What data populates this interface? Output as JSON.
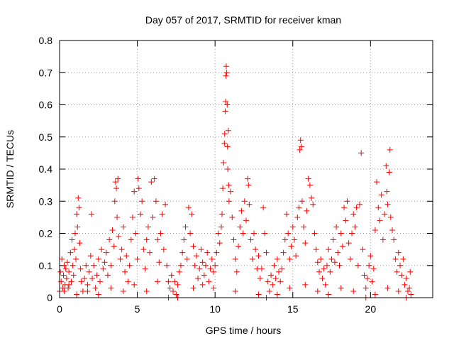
{
  "chart_data": {
    "type": "scatter",
    "title": "Day 057 of 2017, SRMTID for receiver kman",
    "xlabel": "GPS time / hours",
    "ylabel": "SRMTID / TECUs",
    "xlim": [
      0,
      24
    ],
    "ylim": [
      0,
      0.8
    ],
    "x_ticks": [
      0,
      5,
      10,
      15,
      20
    ],
    "y_ticks": [
      0,
      0.1,
      0.2,
      0.3,
      0.4,
      0.5,
      0.6,
      0.7,
      0.8
    ],
    "x_tick_labels": [
      "0",
      "5",
      "10",
      "15",
      "20"
    ],
    "y_tick_labels": [
      "0",
      "0.1",
      "0.2",
      "0.3",
      "0.4",
      "0.5",
      "0.6",
      "0.7",
      "0.8"
    ],
    "grid": true,
    "marker": "+",
    "color": "#ff0000",
    "series": [
      {
        "points": [
          [
            0.0,
            0.02
          ],
          [
            0.05,
            0.08
          ],
          [
            0.1,
            0.05
          ],
          [
            0.15,
            0.12
          ],
          [
            0.2,
            0.03
          ],
          [
            0.25,
            0.07
          ],
          [
            0.3,
            0.1
          ],
          [
            0.35,
            0.04
          ],
          [
            0.4,
            0.09
          ],
          [
            0.45,
            0.06
          ],
          [
            0.5,
            0.11
          ],
          [
            0.55,
            0.03
          ],
          [
            0.6,
            0.08
          ],
          [
            0.7,
            0.14
          ],
          [
            0.75,
            0.05
          ],
          [
            0.8,
            0.18
          ],
          [
            0.85,
            0.1
          ],
          [
            0.9,
            0.07
          ],
          [
            0.95,
            0.15
          ],
          [
            1.0,
            0.2
          ],
          [
            1.05,
            0.12
          ],
          [
            1.1,
            0.26
          ],
          [
            1.15,
            0.22
          ],
          [
            1.2,
            0.31
          ],
          [
            1.25,
            0.28
          ],
          [
            1.3,
            0.17
          ],
          [
            1.35,
            0.09
          ],
          [
            1.4,
            0.05
          ],
          [
            1.5,
            0.02
          ],
          [
            1.6,
            0.06
          ],
          [
            1.7,
            0.1
          ],
          [
            1.8,
            0.04
          ],
          [
            1.9,
            0.08
          ],
          [
            2.0,
            0.13
          ],
          [
            2.05,
            0.26
          ],
          [
            2.1,
            0.06
          ],
          [
            2.2,
            0.1
          ],
          [
            2.3,
            0.03
          ],
          [
            2.4,
            0.07
          ],
          [
            2.5,
            0.12
          ],
          [
            2.6,
            0.05
          ],
          [
            2.7,
            0.15
          ],
          [
            2.8,
            0.09
          ],
          [
            2.9,
            0.11
          ],
          [
            3.0,
            0.14
          ],
          [
            3.1,
            0.07
          ],
          [
            3.2,
            0.18
          ],
          [
            3.3,
            0.1
          ],
          [
            3.4,
            0.21
          ],
          [
            3.5,
            0.16
          ],
          [
            3.55,
            0.3
          ],
          [
            3.6,
            0.36
          ],
          [
            3.65,
            0.34
          ],
          [
            3.7,
            0.25
          ],
          [
            3.75,
            0.37
          ],
          [
            3.8,
            0.19
          ],
          [
            3.9,
            0.12
          ],
          [
            4.0,
            0.15
          ],
          [
            4.1,
            0.22
          ],
          [
            4.2,
            0.08
          ],
          [
            4.3,
            0.13
          ],
          [
            4.4,
            0.05
          ],
          [
            4.5,
            0.1
          ],
          [
            4.6,
            0.18
          ],
          [
            4.7,
            0.25
          ],
          [
            4.8,
            0.33
          ],
          [
            4.9,
            0.2
          ],
          [
            5.0,
            0.12
          ],
          [
            5.05,
            0.37
          ],
          [
            5.1,
            0.34
          ],
          [
            5.2,
            0.26
          ],
          [
            5.3,
            0.3
          ],
          [
            5.4,
            0.15
          ],
          [
            5.5,
            0.09
          ],
          [
            5.6,
            0.18
          ],
          [
            5.7,
            0.22
          ],
          [
            5.8,
            0.14
          ],
          [
            5.9,
            0.36
          ],
          [
            6.0,
            0.25
          ],
          [
            6.1,
            0.37
          ],
          [
            6.2,
            0.3
          ],
          [
            6.3,
            0.18
          ],
          [
            6.4,
            0.11
          ],
          [
            6.5,
            0.2
          ],
          [
            6.6,
            0.26
          ],
          [
            6.7,
            0.15
          ],
          [
            6.8,
            0.29
          ],
          [
            6.9,
            0.1
          ],
          [
            7.0,
            0.05
          ],
          [
            7.1,
            0.03
          ],
          [
            7.2,
            0.07
          ],
          [
            7.3,
            0.02
          ],
          [
            7.4,
            0.05
          ],
          [
            7.5,
            0.01
          ],
          [
            7.6,
            0.04
          ],
          [
            7.7,
            0.08
          ],
          [
            7.8,
            0.1
          ],
          [
            7.9,
            0.14
          ],
          [
            8.0,
            0.18
          ],
          [
            8.1,
            0.22
          ],
          [
            8.2,
            0.12
          ],
          [
            8.3,
            0.28
          ],
          [
            8.4,
            0.2
          ],
          [
            8.5,
            0.26
          ],
          [
            8.6,
            0.16
          ],
          [
            8.7,
            0.1
          ],
          [
            8.8,
            0.13
          ],
          [
            8.9,
            0.06
          ],
          [
            9.0,
            0.09
          ],
          [
            9.1,
            0.15
          ],
          [
            9.2,
            0.11
          ],
          [
            9.3,
            0.07
          ],
          [
            9.4,
            0.1
          ],
          [
            9.5,
            0.14
          ],
          [
            9.6,
            0.05
          ],
          [
            9.7,
            0.09
          ],
          [
            9.8,
            0.12
          ],
          [
            9.9,
            0.08
          ],
          [
            10.0,
            0.1
          ],
          [
            10.1,
            0.14
          ],
          [
            10.2,
            0.2
          ],
          [
            10.3,
            0.17
          ],
          [
            10.4,
            0.22
          ],
          [
            10.45,
            0.26
          ],
          [
            10.5,
            0.34
          ],
          [
            10.55,
            0.42
          ],
          [
            10.6,
            0.48
          ],
          [
            10.62,
            0.51
          ],
          [
            10.65,
            0.58
          ],
          [
            10.68,
            0.61
          ],
          [
            10.7,
            0.69
          ],
          [
            10.72,
            0.72
          ],
          [
            10.75,
            0.7
          ],
          [
            10.78,
            0.6
          ],
          [
            10.8,
            0.47
          ],
          [
            10.82,
            0.4
          ],
          [
            10.85,
            0.52
          ],
          [
            10.88,
            0.35
          ],
          [
            10.9,
            0.3
          ],
          [
            11.0,
            0.33
          ],
          [
            11.1,
            0.25
          ],
          [
            11.2,
            0.18
          ],
          [
            11.3,
            0.12
          ],
          [
            11.4,
            0.08
          ],
          [
            11.5,
            0.16
          ],
          [
            11.6,
            0.22
          ],
          [
            11.7,
            0.27
          ],
          [
            11.8,
            0.2
          ],
          [
            11.9,
            0.3
          ],
          [
            12.0,
            0.24
          ],
          [
            12.1,
            0.37
          ],
          [
            12.15,
            0.35
          ],
          [
            12.2,
            0.29
          ],
          [
            12.3,
            0.18
          ],
          [
            12.4,
            0.12
          ],
          [
            12.5,
            0.2
          ],
          [
            12.6,
            0.15
          ],
          [
            12.7,
            0.09
          ],
          [
            12.8,
            0.13
          ],
          [
            12.9,
            0.06
          ],
          [
            13.0,
            0.09
          ],
          [
            13.1,
            0.28
          ],
          [
            13.2,
            0.2
          ],
          [
            13.3,
            0.14
          ],
          [
            13.4,
            0.05
          ],
          [
            13.5,
            0.02
          ],
          [
            13.6,
            0.07
          ],
          [
            13.7,
            0.04
          ],
          [
            13.8,
            0.1
          ],
          [
            13.9,
            0.06
          ],
          [
            14.0,
            0.12
          ],
          [
            14.1,
            0.08
          ],
          [
            14.2,
            0.05
          ],
          [
            14.3,
            0.09
          ],
          [
            14.4,
            0.14
          ],
          [
            14.5,
            0.18
          ],
          [
            14.6,
            0.26
          ],
          [
            14.7,
            0.2
          ],
          [
            14.8,
            0.12
          ],
          [
            14.9,
            0.16
          ],
          [
            15.0,
            0.22
          ],
          [
            15.1,
            0.18
          ],
          [
            15.2,
            0.13
          ],
          [
            15.3,
            0.25
          ],
          [
            15.4,
            0.28
          ],
          [
            15.45,
            0.46
          ],
          [
            15.5,
            0.49
          ],
          [
            15.55,
            0.47
          ],
          [
            15.6,
            0.3
          ],
          [
            15.7,
            0.22
          ],
          [
            15.8,
            0.17
          ],
          [
            15.9,
            0.27
          ],
          [
            16.0,
            0.37
          ],
          [
            16.1,
            0.35
          ],
          [
            16.2,
            0.31
          ],
          [
            16.3,
            0.29
          ],
          [
            16.4,
            0.2
          ],
          [
            16.5,
            0.15
          ],
          [
            16.6,
            0.11
          ],
          [
            16.7,
            0.08
          ],
          [
            16.8,
            0.12
          ],
          [
            16.9,
            0.06
          ],
          [
            17.0,
            0.09
          ],
          [
            17.1,
            0.04
          ],
          [
            17.2,
            0.1
          ],
          [
            17.3,
            0.15
          ],
          [
            17.4,
            0.08
          ],
          [
            17.5,
            0.12
          ],
          [
            17.6,
            0.18
          ],
          [
            17.7,
            0.11
          ],
          [
            17.8,
            0.22
          ],
          [
            17.9,
            0.14
          ],
          [
            18.0,
            0.1
          ],
          [
            18.1,
            0.2
          ],
          [
            18.2,
            0.16
          ],
          [
            18.3,
            0.28
          ],
          [
            18.4,
            0.24
          ],
          [
            18.5,
            0.3
          ],
          [
            18.6,
            0.17
          ],
          [
            18.7,
            0.12
          ],
          [
            18.8,
            0.2
          ],
          [
            18.9,
            0.26
          ],
          [
            19.0,
            0.22
          ],
          [
            19.1,
            0.28
          ],
          [
            19.2,
            0.1
          ],
          [
            19.3,
            0.29
          ],
          [
            19.4,
            0.45
          ],
          [
            19.5,
            0.15
          ],
          [
            19.6,
            0.07
          ],
          [
            19.7,
            0.03
          ],
          [
            19.8,
            0.06
          ],
          [
            19.9,
            0.1
          ],
          [
            20.0,
            0.13
          ],
          [
            20.1,
            0.05
          ],
          [
            20.2,
            0.09
          ],
          [
            20.3,
            0.21
          ],
          [
            20.4,
            0.36
          ],
          [
            20.5,
            0.28
          ],
          [
            20.6,
            0.24
          ],
          [
            20.7,
            0.32
          ],
          [
            20.8,
            0.18
          ],
          [
            20.9,
            0.26
          ],
          [
            21.0,
            0.41
          ],
          [
            21.05,
            0.33
          ],
          [
            21.1,
            0.29
          ],
          [
            21.2,
            0.39
          ],
          [
            21.25,
            0.46
          ],
          [
            21.3,
            0.25
          ],
          [
            21.4,
            0.21
          ],
          [
            21.5,
            0.18
          ],
          [
            21.6,
            0.12
          ],
          [
            21.7,
            0.08
          ],
          [
            21.8,
            0.14
          ],
          [
            21.9,
            0.1
          ],
          [
            22.0,
            0.07
          ],
          [
            22.1,
            0.12
          ],
          [
            22.2,
            0.04
          ],
          [
            22.3,
            0.06
          ],
          [
            22.4,
            0.02
          ],
          [
            22.5,
            0.03
          ],
          [
            22.55,
            0.08
          ],
          [
            22.6,
            0.01
          ],
          [
            0.3,
            0.02
          ],
          [
            0.6,
            0.04
          ],
          [
            1.1,
            0.01
          ],
          [
            1.8,
            0.02
          ],
          [
            2.5,
            0.01
          ],
          [
            3.3,
            0.03
          ],
          [
            4.1,
            0.02
          ],
          [
            4.8,
            0.04
          ],
          [
            5.6,
            0.02
          ],
          [
            6.3,
            0.05
          ],
          [
            7.0,
            0.0
          ],
          [
            7.6,
            0.0
          ],
          [
            8.6,
            0.03
          ],
          [
            9.2,
            0.04
          ],
          [
            9.9,
            0.03
          ],
          [
            11.3,
            0.02
          ],
          [
            12.8,
            0.01
          ],
          [
            13.3,
            0.0
          ],
          [
            14.0,
            0.01
          ],
          [
            14.8,
            0.03
          ],
          [
            15.8,
            0.04
          ],
          [
            16.6,
            0.02
          ],
          [
            17.3,
            0.01
          ],
          [
            18.1,
            0.03
          ],
          [
            18.9,
            0.02
          ],
          [
            19.7,
            0.0
          ],
          [
            20.3,
            0.01
          ],
          [
            21.1,
            0.03
          ],
          [
            21.8,
            0.02
          ],
          [
            22.3,
            0.0
          ]
        ]
      }
    ]
  }
}
